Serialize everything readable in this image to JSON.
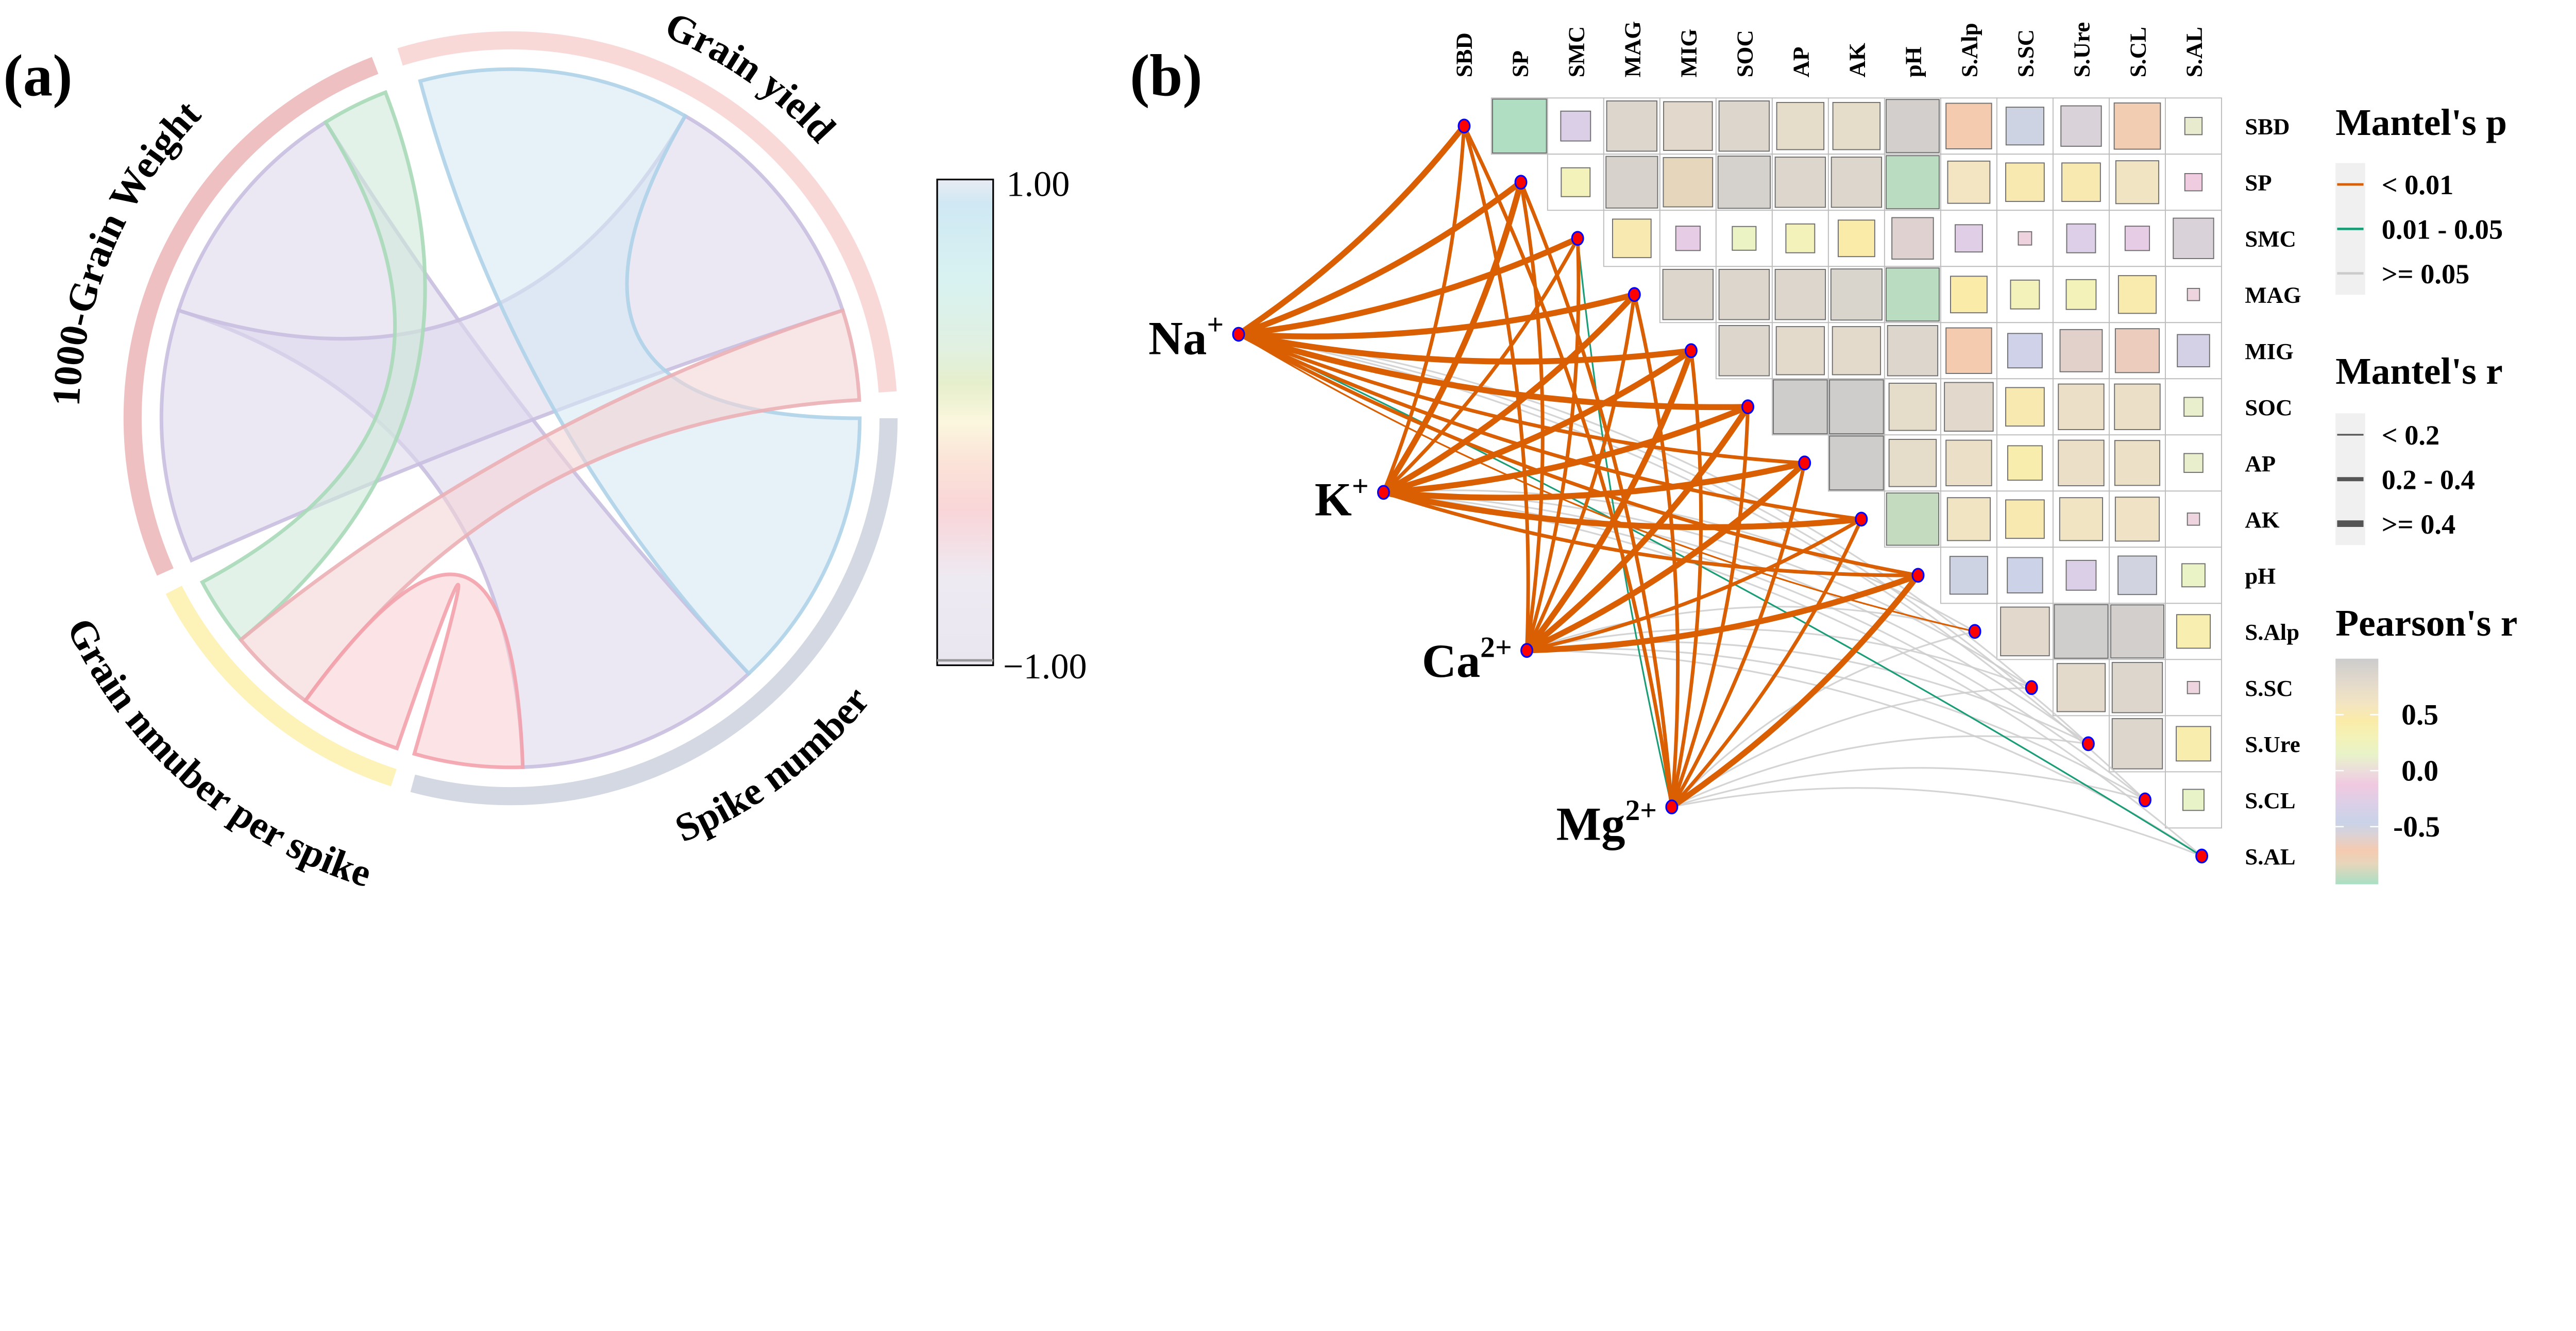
{
  "panel_a": {
    "label": "(a)"
  },
  "panel_b": {
    "label": "(b)"
  },
  "chart_data": [
    {
      "type": "chord",
      "sectors": [
        {
          "name": "Grain yield",
          "color": "#f9d9d8"
        },
        {
          "name": "Spike number",
          "color": "#d3d8e2"
        },
        {
          "name": "Grain nmuber per spike",
          "color": "#fdf2b8"
        },
        {
          "name": "1000-Grain Weight",
          "color": "#efc0c1"
        }
      ],
      "links": [
        {
          "from": "Spike number",
          "to": "1000-Grain Weight",
          "value": -0.8,
          "fill": "#ddd8ec",
          "stroke": "#c9bfe0"
        },
        {
          "from": "Grain yield",
          "to": "1000-Grain Weight",
          "value": -0.8,
          "fill": "#ddd8ec",
          "stroke": "#c9bfe0"
        },
        {
          "from": "Grain yield",
          "to": "Spike number",
          "value": 0.8,
          "fill": "#d6e7f3",
          "stroke": "#aed2e8"
        },
        {
          "from": "Grain nmuber per spike",
          "to": "1000-Grain Weight",
          "value": 0.3,
          "fill": "#cfead8",
          "stroke": "#a8d9b8"
        },
        {
          "from": "Grain yield",
          "to": "Grain nmuber per spike",
          "value": -0.3,
          "fill": "#f3d3d6",
          "stroke": "#eab0b5"
        },
        {
          "from": "Spike number",
          "to": "Grain nmuber per spike",
          "value": -0.45,
          "fill": "#f9d0d6",
          "stroke": "#f3a2ac"
        }
      ],
      "colorbar": {
        "min": -1,
        "max": 1,
        "max_label": "1.00",
        "min_label": "−1.00"
      }
    },
    {
      "type": "heatmap",
      "variables": [
        "SBD",
        "SP",
        "SMC",
        "MAG",
        "MIG",
        "SOC",
        "AP",
        "AK",
        "pH",
        "S.Alp",
        "S.SC",
        "S.Ure",
        "S.CL",
        "S.AL"
      ],
      "pearson_r_upper": [
        [
          -0.98,
          -0.3,
          0.85,
          0.8,
          0.85,
          0.75,
          0.75,
          0.95,
          -0.7,
          -0.48,
          -0.55,
          -0.72,
          0.1
        ],
        [
          0.28,
          0.9,
          -0.82,
          0.92,
          0.85,
          0.85,
          -0.95,
          0.6,
          0.5,
          0.5,
          0.62,
          -0.1
        ],
        [
          0.5,
          -0.2,
          0.19,
          0.28,
          0.45,
          -0.58,
          -0.25,
          -0.06,
          -0.28,
          -0.2,
          -0.55
        ],
        [
          0.85,
          0.85,
          0.85,
          0.88,
          -0.95,
          0.45,
          0.28,
          0.3,
          0.48,
          -0.05
        ],
        [
          0.85,
          0.78,
          0.78,
          0.85,
          -0.7,
          -0.4,
          -0.6,
          -0.65,
          -0.35
        ],
        [
          0.98,
          0.98,
          0.75,
          0.8,
          0.5,
          0.7,
          0.7,
          0.12
        ],
        [
          0.98,
          0.75,
          0.7,
          0.4,
          0.7,
          0.68,
          0.12
        ],
        [
          -0.92,
          0.62,
          0.5,
          0.62,
          0.65,
          -0.05
        ],
        [
          -0.48,
          -0.42,
          -0.3,
          -0.5,
          0.18
        ],
        [
          0.8,
          0.97,
          0.95,
          0.38
        ],
        [
          0.78,
          0.85,
          -0.05
        ],
        [
          0.85,
          0.4
        ],
        [
          0.15
        ]
      ],
      "pearson_palette": [
        [
          1,
          "#cccccc"
        ],
        [
          0.8,
          "#e2d9cc"
        ],
        [
          0.6,
          "#f3e5c2"
        ],
        [
          0.45,
          "#fbeba8"
        ],
        [
          0.3,
          "#f3f2b8"
        ],
        [
          0.15,
          "#e8f3c8"
        ],
        [
          0,
          "#ecdcdc"
        ],
        [
          -0.12,
          "#f0c9e0"
        ],
        [
          -0.28,
          "#dccfe7"
        ],
        [
          -0.45,
          "#c9d3e8"
        ],
        [
          -0.55,
          "#d9d2d8"
        ],
        [
          -0.7,
          "#f5cbb0"
        ],
        [
          -0.82,
          "#e6d6bb"
        ],
        [
          -1,
          "#a9dfc4"
        ]
      ],
      "env": [
        {
          "id": "Na+",
          "label": "Na",
          "sup": "+"
        },
        {
          "id": "K+",
          "label": "K",
          "sup": "+"
        },
        {
          "id": "Ca2+",
          "label": "Ca",
          "sup": "2+"
        },
        {
          "id": "Mg2+",
          "label": "Mg",
          "sup": "2+"
        }
      ],
      "mantel": {
        "Na+": {
          "p": [
            "< 0.01",
            "< 0.01",
            "< 0.01",
            "< 0.01",
            "< 0.01",
            "< 0.01",
            "< 0.01",
            "< 0.01",
            "< 0.01",
            "< 0.01",
            ">= 0.05",
            ">= 0.05",
            ">= 0.05",
            "0.01 - 0.05"
          ],
          "r": [
            ">= 0.4",
            ">= 0.4",
            ">= 0.4",
            ">= 0.4",
            ">= 0.4",
            ">= 0.4",
            "0.2 - 0.4",
            "0.2 - 0.4",
            "0.2 - 0.4",
            "< 0.2",
            "< 0.2",
            "< 0.2",
            "< 0.2",
            "< 0.2"
          ]
        },
        "K+": {
          "p": [
            "< 0.01",
            "< 0.01",
            "< 0.01",
            "< 0.01",
            "< 0.01",
            "< 0.01",
            "< 0.01",
            "< 0.01",
            "< 0.01",
            ">= 0.05",
            ">= 0.05",
            ">= 0.05",
            ">= 0.05",
            ">= 0.05"
          ],
          "r": [
            "0.2 - 0.4",
            ">= 0.4",
            "0.2 - 0.4",
            ">= 0.4",
            ">= 0.4",
            ">= 0.4",
            ">= 0.4",
            ">= 0.4",
            "0.2 - 0.4",
            "< 0.2",
            "< 0.2",
            "< 0.2",
            "< 0.2",
            "< 0.2"
          ]
        },
        "Ca2+": {
          "p": [
            "< 0.01",
            "< 0.01",
            "< 0.01",
            "< 0.01",
            "< 0.01",
            "< 0.01",
            "< 0.01",
            "< 0.01",
            "< 0.01",
            ">= 0.05",
            ">= 0.05",
            ">= 0.05",
            ">= 0.05",
            ">= 0.05"
          ],
          "r": [
            "0.2 - 0.4",
            "0.2 - 0.4",
            "0.2 - 0.4",
            "0.2 - 0.4",
            ">= 0.4",
            ">= 0.4",
            ">= 0.4",
            "0.2 - 0.4",
            ">= 0.4",
            "< 0.2",
            "< 0.2",
            "< 0.2",
            "< 0.2",
            "< 0.2"
          ]
        },
        "Mg2+": {
          "p": [
            "< 0.01",
            "< 0.01",
            "0.01 - 0.05",
            "< 0.01",
            "< 0.01",
            "< 0.01",
            "< 0.01",
            "< 0.01",
            "< 0.01",
            ">= 0.05",
            ">= 0.05",
            ">= 0.05",
            ">= 0.05",
            ">= 0.05"
          ],
          "r": [
            "0.2 - 0.4",
            "0.2 - 0.4",
            "< 0.2",
            "0.2 - 0.4",
            "0.2 - 0.4",
            "0.2 - 0.4",
            "0.2 - 0.4",
            "0.2 - 0.4",
            ">= 0.4",
            "< 0.2",
            "< 0.2",
            "< 0.2",
            "< 0.2",
            "< 0.2"
          ]
        }
      },
      "legend": {
        "mantel_p": {
          "title": "Mantel's p",
          "items": [
            {
              "label": "< 0.01",
              "color": "#d95f02"
            },
            {
              "label": "0.01 - 0.05",
              "color": "#1b9e77"
            },
            {
              "label": ">= 0.05",
              "color": "#cccccc"
            }
          ]
        },
        "mantel_r": {
          "title": "Mantel's r",
          "items": [
            {
              "label": "< 0.2"
            },
            {
              "label": "0.2 - 0.4"
            },
            {
              "label": ">= 0.4"
            }
          ]
        },
        "pearson_r": {
          "title": "Pearson's r",
          "ticks": [
            "0.5",
            "0.0",
            "-0.5"
          ]
        }
      },
      "node_colors": {
        "fill": "#ff0000",
        "stroke": "#0000ff"
      }
    }
  ]
}
